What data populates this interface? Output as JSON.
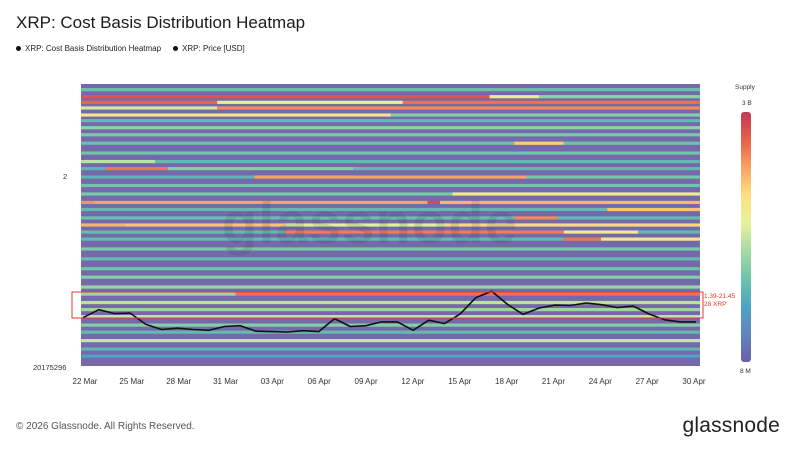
{
  "title": "XRP: Cost Basis Distribution Heatmap",
  "legend": [
    {
      "label": "XRP: Cost Basis Distribution Heatmap",
      "icon": "dot-icon",
      "color": "#111111"
    },
    {
      "label": "XRP: Price [USD]",
      "icon": "dot-icon",
      "color": "#111111"
    }
  ],
  "footer": "© 2026 Glassnode. All Rights Reserved.",
  "logo": "glassnode",
  "watermark": "glassnode",
  "y_ticks": {
    "top": "2",
    "bottom": "20175296"
  },
  "supply_scale": {
    "title": "Supply",
    "max": "3 B",
    "min": "8 M"
  },
  "annotation": {
    "line1": "1.39-21.45",
    "line2": "28 XRP"
  },
  "chart_data": {
    "type": "heatmap",
    "x_tick_labels": [
      "22 Mar",
      "25 Mar",
      "28 Mar",
      "31 Mar",
      "03 Apr",
      "06 Apr",
      "09 Apr",
      "12 Apr",
      "15 Apr",
      "18 Apr",
      "21 Apr",
      "24 Apr",
      "27 Apr",
      "30 Apr"
    ],
    "price_series": {
      "name": "XRP: Price [USD]",
      "values": [
        0.34,
        0.53,
        0.44,
        0.45,
        0.18,
        0.06,
        0.09,
        0.06,
        0.04,
        0.13,
        0.15,
        0.02,
        0.01,
        0.0,
        0.03,
        0.01,
        0.32,
        0.13,
        0.15,
        0.24,
        0.24,
        0.04,
        0.28,
        0.2,
        0.43,
        0.82,
        0.97,
        0.66,
        0.42,
        0.57,
        0.64,
        0.63,
        0.69,
        0.65,
        0.58,
        0.62,
        0.43,
        0.29,
        0.24,
        0.24
      ]
    },
    "colorscale": [
      "#6c5fa8",
      "#5f85c0",
      "#4fa3c6",
      "#6cc4a8",
      "#a4dba2",
      "#e6f39a",
      "#fde085",
      "#f8a460",
      "#e6604b",
      "#c03a55"
    ],
    "bands": [
      {
        "y": 0.02,
        "v": 0.32
      },
      {
        "y": 0.045,
        "v": 0.38,
        "segments": [
          [
            0.0,
            0.66,
            0.92
          ],
          [
            0.66,
            0.74,
            0.62
          ],
          [
            0.74,
            1.0,
            0.4
          ]
        ]
      },
      {
        "y": 0.065,
        "v": 0.5,
        "segments": [
          [
            0.0,
            0.22,
            0.88
          ],
          [
            0.22,
            0.52,
            0.55
          ],
          [
            0.52,
            1.0,
            0.86
          ]
        ]
      },
      {
        "y": 0.085,
        "v": 0.45,
        "segments": [
          [
            0.0,
            0.22,
            0.52
          ],
          [
            0.22,
            1.0,
            0.82
          ]
        ]
      },
      {
        "y": 0.11,
        "v": 0.42,
        "segments": [
          [
            0.0,
            0.5,
            0.65
          ],
          [
            0.5,
            1.0,
            0.38
          ]
        ]
      },
      {
        "y": 0.13,
        "v": 0.3
      },
      {
        "y": 0.155,
        "v": 0.4
      },
      {
        "y": 0.18,
        "v": 0.36
      },
      {
        "y": 0.21,
        "v": 0.3,
        "segments": [
          [
            0.0,
            0.7,
            0.32
          ],
          [
            0.7,
            0.78,
            0.7
          ],
          [
            0.78,
            1.0,
            0.34
          ]
        ]
      },
      {
        "y": 0.245,
        "v": 0.34
      },
      {
        "y": 0.275,
        "v": 0.38,
        "segments": [
          [
            0.0,
            0.12,
            0.48
          ],
          [
            0.12,
            1.0,
            0.3
          ]
        ]
      },
      {
        "y": 0.3,
        "v": 0.72,
        "segments": [
          [
            0.0,
            0.04,
            0.28
          ],
          [
            0.04,
            0.14,
            0.85
          ],
          [
            0.14,
            0.44,
            0.38
          ],
          [
            0.44,
            1.0,
            0.3
          ]
        ]
      },
      {
        "y": 0.33,
        "v": 0.3,
        "segments": [
          [
            0.0,
            0.28,
            0.28
          ],
          [
            0.28,
            0.72,
            0.78
          ],
          [
            0.72,
            1.0,
            0.35
          ]
        ]
      },
      {
        "y": 0.36,
        "v": 0.34
      },
      {
        "y": 0.39,
        "v": 0.3,
        "segments": [
          [
            0.0,
            0.6,
            0.36
          ],
          [
            0.6,
            1.0,
            0.6
          ]
        ]
      },
      {
        "y": 0.42,
        "v": 0.85,
        "segments": [
          [
            0.0,
            0.02,
            0.8
          ],
          [
            0.02,
            0.56,
            0.78
          ],
          [
            0.56,
            0.58,
            0.95
          ],
          [
            0.58,
            1.0,
            0.74
          ]
        ]
      },
      {
        "y": 0.445,
        "v": 0.3,
        "segments": [
          [
            0.0,
            0.85,
            0.3
          ],
          [
            0.85,
            1.0,
            0.72
          ]
        ]
      },
      {
        "y": 0.475,
        "v": 0.32,
        "segments": [
          [
            0.0,
            0.7,
            0.32
          ],
          [
            0.7,
            0.77,
            0.82
          ],
          [
            0.77,
            1.0,
            0.3
          ]
        ]
      },
      {
        "y": 0.5,
        "v": 0.65,
        "segments": [
          [
            0.0,
            0.07,
            0.75
          ],
          [
            0.07,
            0.33,
            0.72
          ],
          [
            0.33,
            0.59,
            0.55
          ],
          [
            0.59,
            1.0,
            0.68
          ]
        ]
      },
      {
        "y": 0.525,
        "v": 0.3,
        "segments": [
          [
            0.0,
            0.33,
            0.3
          ],
          [
            0.33,
            0.78,
            0.84
          ],
          [
            0.78,
            0.9,
            0.62
          ],
          [
            0.9,
            1.0,
            0.3
          ]
        ]
      },
      {
        "y": 0.55,
        "v": 0.3,
        "segments": [
          [
            0.0,
            0.78,
            0.3
          ],
          [
            0.78,
            0.84,
            0.85
          ],
          [
            0.84,
            1.0,
            0.62
          ]
        ]
      },
      {
        "y": 0.585,
        "v": 0.36
      },
      {
        "y": 0.62,
        "v": 0.3
      },
      {
        "y": 0.655,
        "v": 0.34
      },
      {
        "y": 0.685,
        "v": 0.38
      },
      {
        "y": 0.72,
        "v": 0.42
      },
      {
        "y": 0.745,
        "v": 0.84,
        "segments": [
          [
            0.0,
            0.25,
            0.42
          ],
          [
            0.25,
            1.0,
            0.86
          ]
        ]
      },
      {
        "y": 0.775,
        "v": 0.48
      },
      {
        "y": 0.8,
        "v": 0.42
      },
      {
        "y": 0.825,
        "v": 0.5
      },
      {
        "y": 0.855,
        "v": 0.38
      },
      {
        "y": 0.88,
        "v": 0.3
      },
      {
        "y": 0.91,
        "v": 0.5
      },
      {
        "y": 0.94,
        "v": 0.28
      },
      {
        "y": 0.965,
        "v": 0.22
      }
    ]
  }
}
